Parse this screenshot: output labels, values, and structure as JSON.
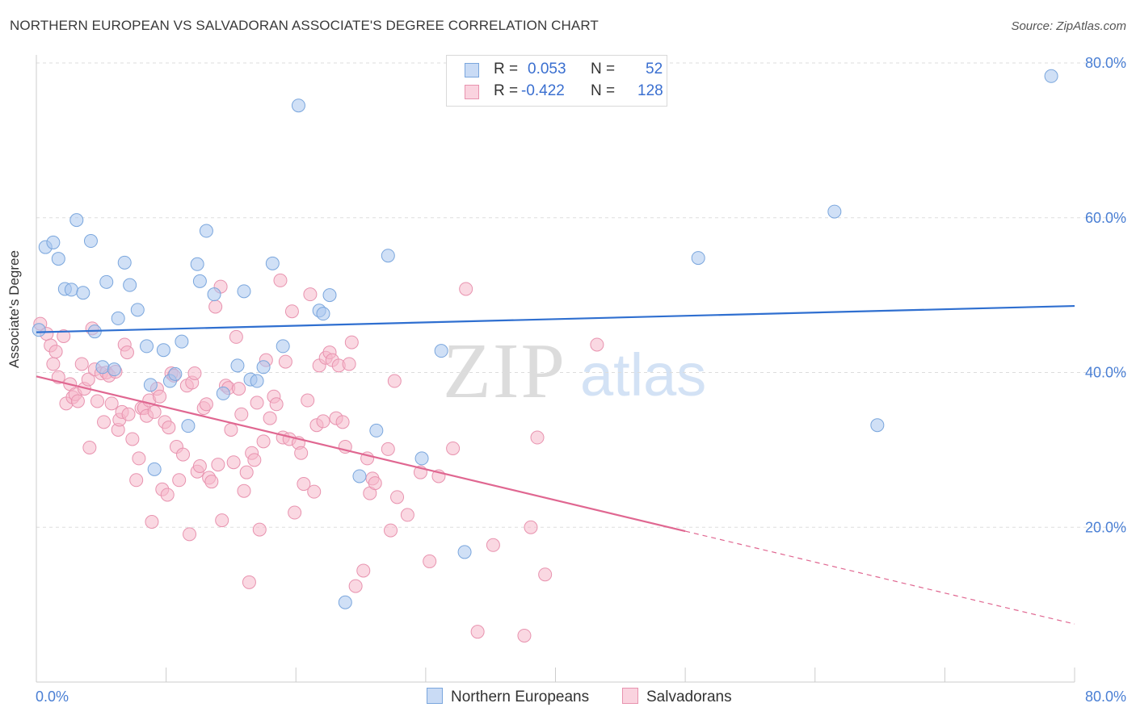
{
  "title": "NORTHERN EUROPEAN VS SALVADORAN ASSOCIATE'S DEGREE CORRELATION CHART",
  "source": "Source: ZipAtlas.com",
  "watermark": {
    "zip": "ZIP",
    "atlas": "atlas"
  },
  "legend": {
    "r_label": "R =",
    "n_label": "N =",
    "rows": [
      {
        "r": "0.053",
        "n": "52",
        "color": "#a9c7ef"
      },
      {
        "r": "-0.422",
        "n": "128",
        "color": "#f5b8cb"
      }
    ]
  },
  "bottom_legend": [
    {
      "label": "Northern Europeans",
      "color": "#a9c7ef"
    },
    {
      "label": "Salvadorans",
      "color": "#f5b8cb"
    }
  ],
  "colors": {
    "blue_fill": "#a9c7ef",
    "blue_stroke": "#7aa6dd",
    "blue_line": "#2f6fd0",
    "pink_fill": "#f5b8cb",
    "pink_stroke": "#e893af",
    "pink_line": "#e06791",
    "grid": "#dddddd",
    "axis_text": "#4a7fd4"
  },
  "chart_data": {
    "type": "scatter",
    "title": "NORTHERN EUROPEAN VS SALVADORAN ASSOCIATE'S DEGREE CORRELATION CHART",
    "xlabel": "",
    "ylabel": "Associate's Degree",
    "xlim": [
      0,
      80
    ],
    "ylim": [
      0,
      80
    ],
    "x_tick_labels": [
      "0.0%",
      "80.0%"
    ],
    "y_tick_labels": [
      "20.0%",
      "40.0%",
      "60.0%",
      "80.0%"
    ],
    "y_ticks": [
      20,
      40,
      60,
      80
    ],
    "grid": "horizontal dashed",
    "legend_position": "top-center",
    "series": [
      {
        "name": "Northern Europeans",
        "r": 0.053,
        "n": 52,
        "trend": {
          "x": [
            0,
            80
          ],
          "y": [
            45.2,
            48.6
          ],
          "style": "solid"
        },
        "points": [
          [
            0.2,
            45.5
          ],
          [
            0.7,
            56.2
          ],
          [
            1.3,
            56.8
          ],
          [
            1.7,
            54.7
          ],
          [
            2.2,
            50.8
          ],
          [
            2.7,
            50.7
          ],
          [
            3.1,
            59.7
          ],
          [
            3.6,
            50.3
          ],
          [
            4.2,
            57.0
          ],
          [
            4.5,
            45.3
          ],
          [
            5.1,
            40.7
          ],
          [
            5.4,
            51.7
          ],
          [
            6.0,
            40.4
          ],
          [
            6.3,
            47.0
          ],
          [
            6.8,
            54.2
          ],
          [
            7.2,
            51.3
          ],
          [
            7.8,
            48.1
          ],
          [
            8.5,
            43.4
          ],
          [
            8.8,
            38.4
          ],
          [
            9.1,
            27.5
          ],
          [
            9.8,
            42.9
          ],
          [
            10.3,
            38.9
          ],
          [
            10.7,
            39.8
          ],
          [
            11.2,
            44.0
          ],
          [
            11.7,
            33.1
          ],
          [
            12.4,
            54.0
          ],
          [
            12.6,
            51.8
          ],
          [
            13.1,
            58.3
          ],
          [
            13.7,
            50.1
          ],
          [
            14.4,
            37.3
          ],
          [
            15.5,
            40.9
          ],
          [
            16.0,
            50.5
          ],
          [
            16.5,
            39.1
          ],
          [
            17.0,
            38.9
          ],
          [
            17.5,
            40.7
          ],
          [
            18.2,
            54.1
          ],
          [
            19.0,
            43.4
          ],
          [
            20.2,
            74.5
          ],
          [
            21.8,
            48.0
          ],
          [
            22.1,
            47.6
          ],
          [
            22.6,
            50.0
          ],
          [
            23.8,
            10.3
          ],
          [
            24.9,
            26.6
          ],
          [
            26.2,
            32.5
          ],
          [
            27.1,
            55.1
          ],
          [
            29.7,
            28.9
          ],
          [
            31.2,
            42.8
          ],
          [
            33.0,
            16.8
          ],
          [
            51.0,
            54.8
          ],
          [
            61.5,
            60.8
          ],
          [
            64.8,
            33.2
          ],
          [
            78.2,
            78.3
          ]
        ]
      },
      {
        "name": "Salvadorans",
        "r": -0.422,
        "n": 128,
        "trend": {
          "x": [
            0,
            80
          ],
          "y": [
            39.5,
            7.5
          ],
          "solid_to_x": 50,
          "style": "solid then dashed"
        },
        "points": [
          [
            0.3,
            46.3
          ],
          [
            0.8,
            45.0
          ],
          [
            1.1,
            43.5
          ],
          [
            1.3,
            41.1
          ],
          [
            1.5,
            42.7
          ],
          [
            1.7,
            39.4
          ],
          [
            2.1,
            44.7
          ],
          [
            2.3,
            36.0
          ],
          [
            2.6,
            38.5
          ],
          [
            2.8,
            36.8
          ],
          [
            3.0,
            37.2
          ],
          [
            3.2,
            36.3
          ],
          [
            3.5,
            41.1
          ],
          [
            3.7,
            37.9
          ],
          [
            4.0,
            39.1
          ],
          [
            4.1,
            30.3
          ],
          [
            4.3,
            45.7
          ],
          [
            4.5,
            40.4
          ],
          [
            4.7,
            36.3
          ],
          [
            5.0,
            39.9
          ],
          [
            5.2,
            33.6
          ],
          [
            5.4,
            40.0
          ],
          [
            5.6,
            39.6
          ],
          [
            5.8,
            36.0
          ],
          [
            6.1,
            40.1
          ],
          [
            6.3,
            32.6
          ],
          [
            6.4,
            33.9
          ],
          [
            6.6,
            34.9
          ],
          [
            6.8,
            43.6
          ],
          [
            7.0,
            42.6
          ],
          [
            7.1,
            34.6
          ],
          [
            7.4,
            31.4
          ],
          [
            7.7,
            26.1
          ],
          [
            7.9,
            28.9
          ],
          [
            8.1,
            35.4
          ],
          [
            8.3,
            35.4
          ],
          [
            8.5,
            34.4
          ],
          [
            8.7,
            36.4
          ],
          [
            8.9,
            20.7
          ],
          [
            9.1,
            34.9
          ],
          [
            9.3,
            37.9
          ],
          [
            9.5,
            36.9
          ],
          [
            9.7,
            24.9
          ],
          [
            9.9,
            33.6
          ],
          [
            10.1,
            24.2
          ],
          [
            10.2,
            32.9
          ],
          [
            10.4,
            39.9
          ],
          [
            10.6,
            39.6
          ],
          [
            10.8,
            30.4
          ],
          [
            11.0,
            26.1
          ],
          [
            11.3,
            29.4
          ],
          [
            11.6,
            38.3
          ],
          [
            11.8,
            19.1
          ],
          [
            12.0,
            38.7
          ],
          [
            12.2,
            39.9
          ],
          [
            12.4,
            27.2
          ],
          [
            12.6,
            27.9
          ],
          [
            12.9,
            35.4
          ],
          [
            13.1,
            35.9
          ],
          [
            13.3,
            26.4
          ],
          [
            13.5,
            25.9
          ],
          [
            13.8,
            48.5
          ],
          [
            14.0,
            28.1
          ],
          [
            14.2,
            51.1
          ],
          [
            14.3,
            20.9
          ],
          [
            14.6,
            38.3
          ],
          [
            14.8,
            38.0
          ],
          [
            15.0,
            32.6
          ],
          [
            15.2,
            28.4
          ],
          [
            15.4,
            44.6
          ],
          [
            15.6,
            37.9
          ],
          [
            15.8,
            34.6
          ],
          [
            16.0,
            24.7
          ],
          [
            16.2,
            27.1
          ],
          [
            16.4,
            12.9
          ],
          [
            16.6,
            29.6
          ],
          [
            16.8,
            28.7
          ],
          [
            17.0,
            36.1
          ],
          [
            17.2,
            19.7
          ],
          [
            17.5,
            31.1
          ],
          [
            17.7,
            41.6
          ],
          [
            18.0,
            34.1
          ],
          [
            18.3,
            36.9
          ],
          [
            18.5,
            35.9
          ],
          [
            18.8,
            51.9
          ],
          [
            19.0,
            31.6
          ],
          [
            19.2,
            41.4
          ],
          [
            19.5,
            31.4
          ],
          [
            19.7,
            47.9
          ],
          [
            19.9,
            21.9
          ],
          [
            20.2,
            30.9
          ],
          [
            20.4,
            29.6
          ],
          [
            20.6,
            25.6
          ],
          [
            20.9,
            36.4
          ],
          [
            21.1,
            50.1
          ],
          [
            21.4,
            24.6
          ],
          [
            21.6,
            33.2
          ],
          [
            21.8,
            40.9
          ],
          [
            22.1,
            33.7
          ],
          [
            22.3,
            41.9
          ],
          [
            22.6,
            42.6
          ],
          [
            22.8,
            41.6
          ],
          [
            23.1,
            34.1
          ],
          [
            23.3,
            40.9
          ],
          [
            23.6,
            33.6
          ],
          [
            23.8,
            30.4
          ],
          [
            24.1,
            41.1
          ],
          [
            24.3,
            43.9
          ],
          [
            24.6,
            12.4
          ],
          [
            25.2,
            14.4
          ],
          [
            25.5,
            28.9
          ],
          [
            25.7,
            24.4
          ],
          [
            25.9,
            26.3
          ],
          [
            26.1,
            25.7
          ],
          [
            27.1,
            30.1
          ],
          [
            27.3,
            19.6
          ],
          [
            27.6,
            38.9
          ],
          [
            27.8,
            23.9
          ],
          [
            28.6,
            21.6
          ],
          [
            29.6,
            27.1
          ],
          [
            30.3,
            15.6
          ],
          [
            31.0,
            26.6
          ],
          [
            32.1,
            30.2
          ],
          [
            33.1,
            50.8
          ],
          [
            34.0,
            6.5
          ],
          [
            35.2,
            17.7
          ],
          [
            37.6,
            6.0
          ],
          [
            38.1,
            20.0
          ],
          [
            38.6,
            31.6
          ],
          [
            39.2,
            13.9
          ],
          [
            43.2,
            43.6
          ]
        ]
      }
    ]
  }
}
